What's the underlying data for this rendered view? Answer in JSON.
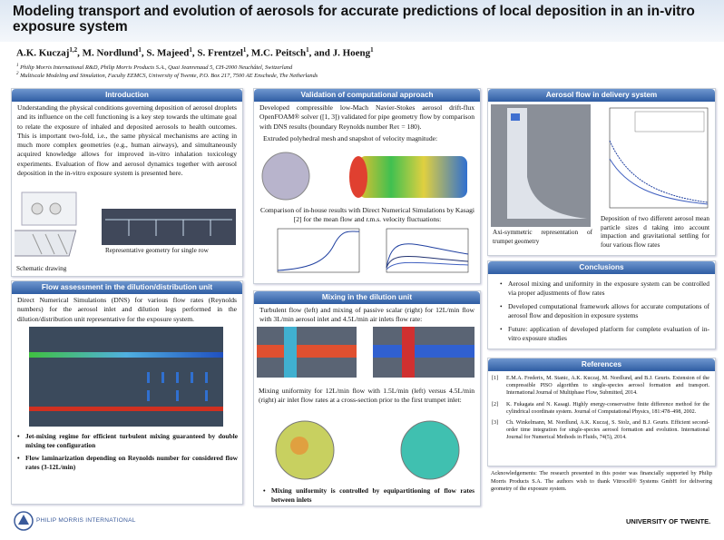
{
  "header": {
    "title": "Modeling transport and evolution of aerosols for accurate predictions of local deposition in an in-vitro exposure system",
    "authors": [
      {
        "name": "A.K. Kuczaj",
        "sup": "1,2",
        "sep": ", "
      },
      {
        "name": "M. Nordlund",
        "sup": "1",
        "sep": ", "
      },
      {
        "name": "S. Majeed",
        "sup": "1",
        "sep": ", "
      },
      {
        "name": "S. Frentzel",
        "sup": "1",
        "sep": ", "
      },
      {
        "name": "M.C. Peitsch",
        "sup": "1",
        "sep": ", and "
      },
      {
        "name": "J. Hoeng",
        "sup": "1"
      }
    ],
    "affiliations": [
      {
        "sup": "1",
        "text": "Philip Morris International R&D, Philip Morris Products S.A., Quai Jeanrenaud 5, CH-2000 Neuchâtel, Switzerland"
      },
      {
        "sup": "2",
        "text": "Multiscale Modeling and Simulation, Faculty EEMCS, University of Twente, P.O. Box 217, 7500 AE Enschede, The Netherlands"
      }
    ]
  },
  "introduction": {
    "heading": "Introduction",
    "text": "Understanding the physical conditions governing deposition of aerosol droplets and its influence on the cell functioning is a key step towards the ultimate goal to relate the exposure of inhaled and deposited aerosols to health outcomes.  This is important two-fold, i.e., the same physical mechanisms are acting in much more complex geometries (e.g., human airways), and simultaneously acquired knowledge allows for improved in-vitro inhalation toxicology experiments. Evaluation of flow and aerosol dynamics together with aerosol deposition in the in-vitro exposure system is presented here.",
    "caption_schematic": "Schematic drawing",
    "caption_geometry": "Representative geometry for single row"
  },
  "flow_assessment": {
    "heading": "Flow assessment in the dilution/distribution unit",
    "text": "Direct Numerical Simulations (DNS) for various flow rates (Reynolds numbers) for the aerosol inlet and dilution legs performed in the dilution/distribution unit representative for the exposure system.",
    "bullets": [
      "Jet-mixing regime for efficient turbulent mixing guaranteed by double mixing tee configuration",
      "Flow laminarization depending on Reynolds number for considered flow rates (3-12L/min)"
    ]
  },
  "validation": {
    "heading": "Validation of computational approach",
    "text": "Developed compressible low-Mach Navier-Stokes aerosol drift-flux OpenFOAM® solver ([1, 3]) validated for pipe geometry flow by comparison with DNS results (boundary Reynolds number Reτ = 180).",
    "mesh_text": "Extruded polyhedral mesh and snapshot of velocity magnitude:",
    "comparison_text": "Comparison of in-house results with Direct Numerical Simulations by Kasagi [2] for the mean flow and r.m.s. velocity fluctuations:"
  },
  "mixing": {
    "heading": "Mixing in the dilution unit",
    "text1": "Turbulent flow (left) and mixing of passive scalar (right) for 12L/min flow with 3L/min aerosol inlet and 4.5L/min air inlets flow rate:",
    "text2": "Mixing uniformity for 12L/min flow with 1.5L/min (left) versus 4.5L/min (right) air inlet flow rates at a cross-section prior to the first trumpet inlet:",
    "bullets": [
      "Mixing uniformity is controlled by equipartitioning of flow rates between inlets"
    ]
  },
  "aerosol_flow": {
    "heading": "Aerosol flow in delivery system",
    "caption_left": "Axi-symmetric representation of trumpet geometry",
    "caption_right": "Deposition of two different aerosol mean particle sizes d taking into account impaction and gravitational settling for four various flow rates"
  },
  "conclusions": {
    "heading": "Conclusions",
    "bullets": [
      "Aerosol mixing and uniformity in the exposure system can be controlled via proper adjustments of flow rates",
      "Developed computational framework allows for accurate computations of aerosol flow and deposition in exposure systems",
      "Future: application of developed platform for complete evaluation of in-vitro exposure studies"
    ]
  },
  "references": {
    "heading": "References",
    "items": [
      {
        "label": "[1]",
        "text": "E.M.A. Frederix, M. Stanic, A.K. Kuczaj, M. Nordlund, and B.J. Geurts. Extension of the compressible PISO algorithm to single-species aerosol formation and transport. International Journal of Multiphase Flow, Submitted, 2014."
      },
      {
        "label": "[2]",
        "text": "K. Fukagata and N. Kasagi. Highly energy-conservative finite difference method for the cylindrical coordinate system. Journal of Computational Physics, 181:478–498, 2002."
      },
      {
        "label": "[3]",
        "text": "Ch. Winkelmann, M. Nordlund, A.K. Kuczaj, S. Stolz, and B.J. Geurts. Efficient second-order time integration for single-species aerosol formation and evolution. International Journal for Numerical Methods in Fluids, 74(5), 2014."
      }
    ],
    "acknowledgment": "Acknowledgements: The research presented in this poster was financially supported by Philip Morris Products S.A. The authors wish to thank Vitrocell® Systems GmbH for delivering geometry of the exposure system."
  },
  "footer": {
    "left_logo": "PHILIP MORRIS INTERNATIONAL",
    "right_logo": "UNIVERSITY OF TWENTE."
  }
}
